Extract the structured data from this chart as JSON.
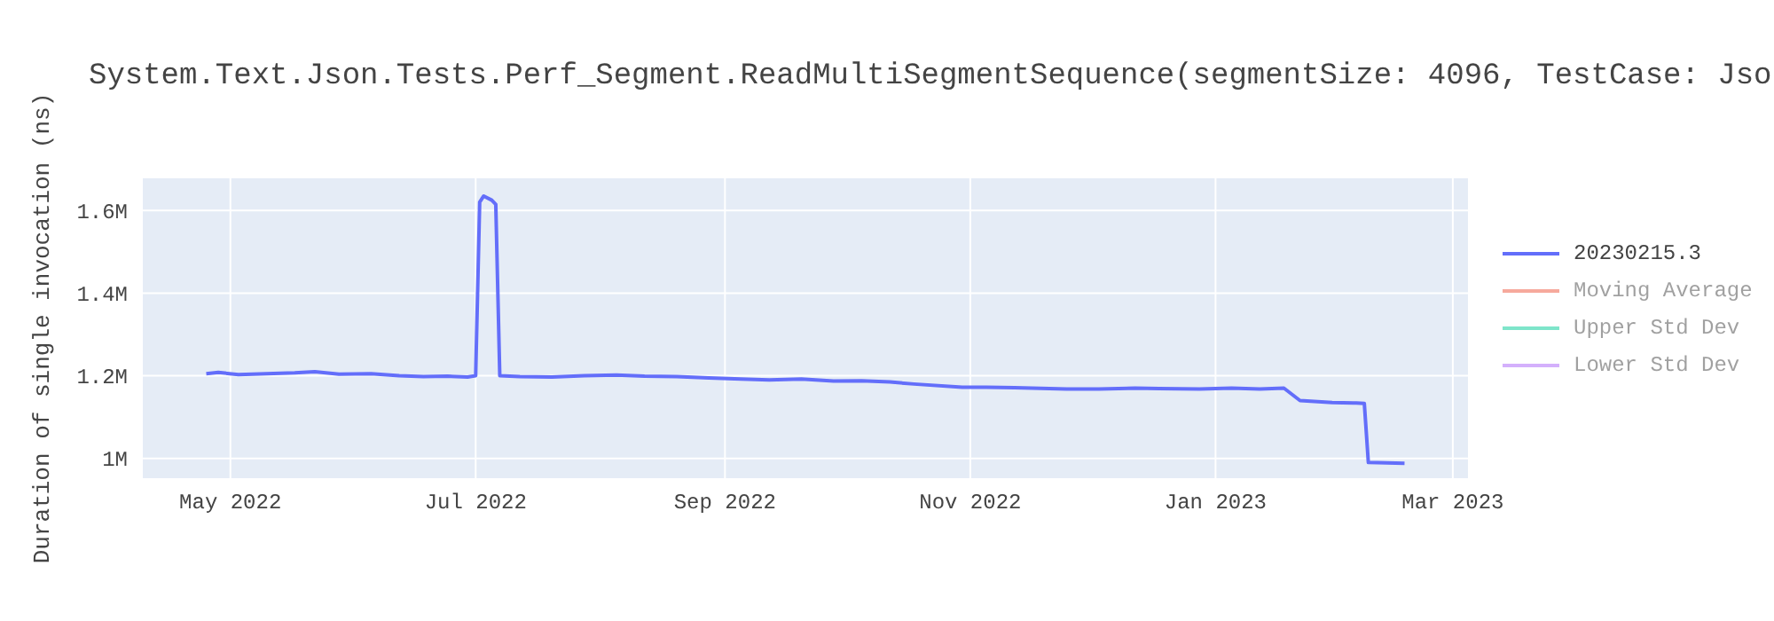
{
  "chart_data": {
    "type": "line",
    "title": "System.Text.Json.Tests.Perf_Segment.ReadMultiSegmentSequence(segmentSize: 4096, TestCase: Jso",
    "ylabel": "Duration of single invocation (ns)",
    "x": [
      "2022-04-25",
      "2022-04-28",
      "2022-05-03",
      "2022-05-10",
      "2022-05-17",
      "2022-05-22",
      "2022-05-28",
      "2022-06-05",
      "2022-06-12",
      "2022-06-18",
      "2022-06-24",
      "2022-06-29",
      "2022-07-01",
      "2022-07-02",
      "2022-07-03",
      "2022-07-05",
      "2022-07-06",
      "2022-07-07",
      "2022-07-12",
      "2022-07-20",
      "2022-07-28",
      "2022-08-05",
      "2022-08-12",
      "2022-08-20",
      "2022-08-28",
      "2022-09-05",
      "2022-09-12",
      "2022-09-20",
      "2022-09-28",
      "2022-10-05",
      "2022-10-12",
      "2022-10-18",
      "2022-10-30",
      "2022-11-05",
      "2022-11-12",
      "2022-11-25",
      "2022-12-03",
      "2022-12-12",
      "2022-12-18",
      "2022-12-28",
      "2023-01-05",
      "2023-01-12",
      "2023-01-18",
      "2023-01-20",
      "2023-01-22",
      "2023-01-30",
      "2023-02-05",
      "2023-02-07",
      "2023-02-08",
      "2023-02-17"
    ],
    "series": [
      {
        "name": "20230215.3",
        "color": "#636efa",
        "values": [
          1205000,
          1208000,
          1203000,
          1205000,
          1207000,
          1210000,
          1204000,
          1205000,
          1200000,
          1198000,
          1199000,
          1197000,
          1200000,
          1620000,
          1635000,
          1625000,
          1615000,
          1200000,
          1198000,
          1197000,
          1200000,
          1202000,
          1199000,
          1198000,
          1195000,
          1192000,
          1190000,
          1192000,
          1187000,
          1188000,
          1185000,
          1180000,
          1172000,
          1172000,
          1171000,
          1168000,
          1168000,
          1170000,
          1169000,
          1168000,
          1170000,
          1168000,
          1170000,
          1155000,
          1140000,
          1135000,
          1134000,
          1133000,
          990000,
          988000
        ]
      },
      {
        "name": "Moving Average",
        "color": "#ef553b",
        "values": [
          null,
          null,
          null,
          null,
          null,
          null,
          null,
          null,
          null,
          null,
          null,
          null,
          null,
          null,
          null,
          null,
          null,
          null,
          null,
          null,
          null,
          null,
          null,
          null,
          null,
          null,
          null,
          null,
          null,
          null,
          null,
          null,
          null,
          null,
          null,
          null,
          null,
          null,
          null,
          null,
          null,
          null,
          null,
          null,
          null,
          null,
          null,
          null,
          null,
          null
        ]
      },
      {
        "name": "Upper Std Dev",
        "color": "#00cc96",
        "values": [
          null,
          null,
          null,
          null,
          null,
          null,
          null,
          null,
          null,
          null,
          null,
          null,
          null,
          null,
          null,
          null,
          null,
          null,
          null,
          null,
          null,
          null,
          null,
          null,
          null,
          null,
          null,
          null,
          null,
          null,
          null,
          null,
          null,
          null,
          null,
          null,
          null,
          null,
          null,
          null,
          null,
          null,
          null,
          null,
          null,
          null,
          null,
          null,
          null,
          null
        ]
      },
      {
        "name": "Lower Std Dev",
        "color": "#ab63fa",
        "values": [
          null,
          null,
          null,
          null,
          null,
          null,
          null,
          null,
          null,
          null,
          null,
          null,
          null,
          null,
          null,
          null,
          null,
          null,
          null,
          null,
          null,
          null,
          null,
          null,
          null,
          null,
          null,
          null,
          null,
          null,
          null,
          null,
          null,
          null,
          null,
          null,
          null,
          null,
          null,
          null,
          null,
          null,
          null,
          null,
          null,
          null,
          null,
          null,
          null,
          null
        ]
      }
    ],
    "xlim": [
      "2022-04-09",
      "2023-03-05"
    ],
    "xticks": [
      {
        "value": "2022-05-01",
        "label": "May 2022"
      },
      {
        "value": "2022-07-01",
        "label": "Jul 2022"
      },
      {
        "value": "2022-09-01",
        "label": "Sep 2022"
      },
      {
        "value": "2022-11-01",
        "label": "Nov 2022"
      },
      {
        "value": "2023-01-01",
        "label": "Jan 2023"
      },
      {
        "value": "2023-03-01",
        "label": "Mar 2023"
      }
    ],
    "ylim": [
      950000,
      1680000
    ],
    "yticks": [
      {
        "value": 1000000,
        "label": "1M"
      },
      {
        "value": 1200000,
        "label": "1.2M"
      },
      {
        "value": 1400000,
        "label": "1.4M"
      },
      {
        "value": 1600000,
        "label": "1.6M"
      }
    ],
    "grid": true,
    "legend": "top right",
    "line_style": "solid",
    "marker": "none"
  }
}
